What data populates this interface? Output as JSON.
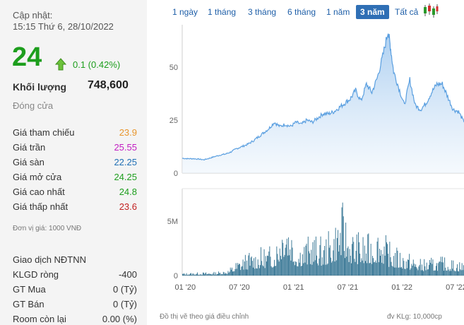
{
  "info": {
    "updated_label": "Cập nhật:",
    "updated_time": "15:15 Thứ 6, 28/10/2022",
    "price": "24",
    "change": "0.1 (0.42%)",
    "volume_label": "Khối lượng",
    "volume_value": "748,600",
    "close_label": "Đóng cửa",
    "prices": [
      {
        "label": "Giá tham chiếu",
        "value": "23.9",
        "color": "#e8952c"
      },
      {
        "label": "Giá trần",
        "value": "25.55",
        "color": "#c21ec2"
      },
      {
        "label": "Giá sàn",
        "value": "22.25",
        "color": "#1f6fb5"
      },
      {
        "label": "Giá mở cửa",
        "value": "24.25",
        "color": "#1d9e1d"
      },
      {
        "label": "Giá cao nhất",
        "value": "24.8",
        "color": "#1d9e1d"
      },
      {
        "label": "Giá thấp nhất",
        "value": "23.6",
        "color": "#c22020"
      }
    ],
    "unit_note": "Đơn vị giá: 1000 VNĐ",
    "foreign": [
      {
        "label": "Giao dịch NĐTNN",
        "value": ""
      },
      {
        "label": "KLGD ròng",
        "value": "-400"
      },
      {
        "label": "GT Mua",
        "value": "0 (Tỷ)"
      },
      {
        "label": "GT Bán",
        "value": "0 (Tỷ)"
      },
      {
        "label": "Room còn lại",
        "value": "0.00 (%)"
      }
    ]
  },
  "tabs": {
    "items": [
      "1 ngày",
      "1 tháng",
      "3 tháng",
      "6 tháng",
      "1 năm",
      "3 năm",
      "Tất cả"
    ],
    "active": "3 năm"
  },
  "chart_data": {
    "type": "area",
    "price_axis_ticks": [
      "50",
      "25",
      "0"
    ],
    "volume_axis_ticks": [
      "5M",
      "0"
    ],
    "x_ticks": [
      "01 '20",
      "07 '20",
      "01 '21",
      "07 '21",
      "01 '22",
      "07 '22"
    ],
    "price_series": [
      {
        "t": 0,
        "v": 7
      },
      {
        "t": 0.05,
        "v": 6.8
      },
      {
        "t": 0.1,
        "v": 6.8
      },
      {
        "t": 0.15,
        "v": 6.6
      },
      {
        "t": 0.2,
        "v": 6.3
      },
      {
        "t": 0.25,
        "v": 7
      },
      {
        "t": 0.3,
        "v": 7.8
      },
      {
        "t": 0.35,
        "v": 8.5
      },
      {
        "t": 0.4,
        "v": 9
      },
      {
        "t": 0.45,
        "v": 10
      },
      {
        "t": 0.5,
        "v": 11.5
      },
      {
        "t": 0.55,
        "v": 12.5
      },
      {
        "t": 0.6,
        "v": 13.5
      },
      {
        "t": 0.65,
        "v": 15
      },
      {
        "t": 0.7,
        "v": 17
      },
      {
        "t": 0.75,
        "v": 19
      },
      {
        "t": 0.8,
        "v": 21
      },
      {
        "t": 0.85,
        "v": 24
      },
      {
        "t": 0.9,
        "v": 22
      },
      {
        "t": 0.95,
        "v": 23
      },
      {
        "t": 1.0,
        "v": 22
      },
      {
        "t": 1.05,
        "v": 24
      },
      {
        "t": 1.1,
        "v": 23
      },
      {
        "t": 1.15,
        "v": 25
      },
      {
        "t": 1.2,
        "v": 24
      },
      {
        "t": 1.25,
        "v": 26
      },
      {
        "t": 1.3,
        "v": 28
      },
      {
        "t": 1.35,
        "v": 28
      },
      {
        "t": 1.4,
        "v": 29
      },
      {
        "t": 1.45,
        "v": 31
      },
      {
        "t": 1.5,
        "v": 33
      },
      {
        "t": 1.55,
        "v": 35
      },
      {
        "t": 1.6,
        "v": 39
      },
      {
        "t": 1.65,
        "v": 34
      },
      {
        "t": 1.7,
        "v": 42
      },
      {
        "t": 1.75,
        "v": 38
      },
      {
        "t": 1.8,
        "v": 45
      },
      {
        "t": 1.85,
        "v": 55
      },
      {
        "t": 1.9,
        "v": 67
      },
      {
        "t": 1.92,
        "v": 60
      },
      {
        "t": 1.95,
        "v": 48
      },
      {
        "t": 2.0,
        "v": 40
      },
      {
        "t": 2.05,
        "v": 32
      },
      {
        "t": 2.1,
        "v": 44
      },
      {
        "t": 2.15,
        "v": 32
      },
      {
        "t": 2.2,
        "v": 30
      },
      {
        "t": 2.25,
        "v": 33
      },
      {
        "t": 2.3,
        "v": 38
      },
      {
        "t": 2.35,
        "v": 42
      },
      {
        "t": 2.4,
        "v": 42
      },
      {
        "t": 2.45,
        "v": 36
      },
      {
        "t": 2.5,
        "v": 30
      },
      {
        "t": 2.55,
        "v": 29
      },
      {
        "t": 2.6,
        "v": 24
      }
    ],
    "price_ylim": [
      0,
      70
    ],
    "volume_ylim": [
      0,
      8
    ],
    "volume_unit": "M"
  },
  "notes": {
    "left": "Đồ thị vẽ theo giá điều chỉnh",
    "right": "đv KLg: 10,000cp"
  },
  "colors": {
    "up": "#1d9e1d",
    "area_fill": "#a9cdf0",
    "area_line": "#5a9fe0",
    "volume_bar": "#2d6f8f",
    "tab_active": "#2f6fb5"
  }
}
